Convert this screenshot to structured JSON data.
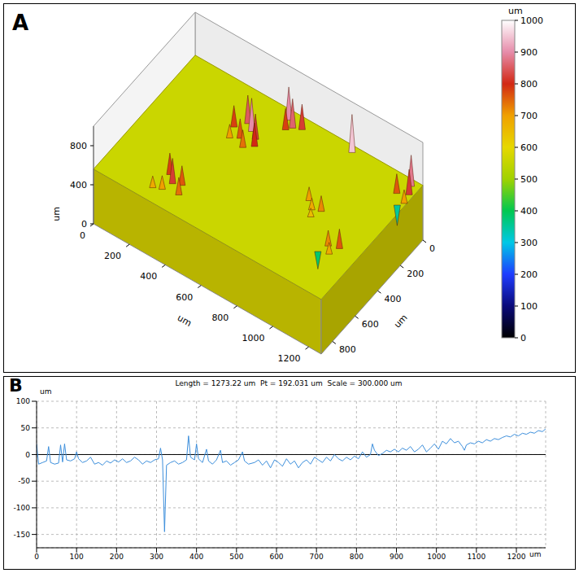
{
  "chart_data": [
    {
      "panel": "A",
      "type": "surface",
      "x_label": "um",
      "y_label": "um",
      "z_label": "um",
      "xlim": [
        0,
        1270
      ],
      "xticks": [
        0,
        200,
        400,
        600,
        800,
        1000,
        1200
      ],
      "ylim": [
        0,
        900
      ],
      "yticks": [
        0,
        200,
        400,
        600,
        800
      ],
      "zlim": [
        0,
        1000
      ],
      "zticks": [
        0,
        400,
        800
      ],
      "base_height": 560,
      "peaks": [
        {
          "x": 560,
          "y": 60,
          "z": 900
        },
        {
          "x": 600,
          "y": 90,
          "z": 860
        },
        {
          "x": 640,
          "y": 70,
          "z": 820
        },
        {
          "x": 580,
          "y": 120,
          "z": 780
        },
        {
          "x": 420,
          "y": 200,
          "z": 850
        },
        {
          "x": 460,
          "y": 230,
          "z": 900
        },
        {
          "x": 500,
          "y": 260,
          "z": 820
        },
        {
          "x": 380,
          "y": 260,
          "z": 780
        },
        {
          "x": 440,
          "y": 300,
          "z": 760
        },
        {
          "x": 520,
          "y": 300,
          "z": 800
        },
        {
          "x": 480,
          "y": 340,
          "z": 740
        },
        {
          "x": 400,
          "y": 330,
          "z": 700
        },
        {
          "x": 900,
          "y": 40,
          "z": 950
        },
        {
          "x": 300,
          "y": 700,
          "z": 780
        },
        {
          "x": 340,
          "y": 740,
          "z": 820
        },
        {
          "x": 380,
          "y": 720,
          "z": 760
        },
        {
          "x": 320,
          "y": 800,
          "z": 700
        },
        {
          "x": 400,
          "y": 780,
          "z": 740
        },
        {
          "x": 280,
          "y": 820,
          "z": 680
        },
        {
          "x": 1230,
          "y": 40,
          "z": 880
        },
        {
          "x": 1250,
          "y": 90,
          "z": 820
        },
        {
          "x": 1200,
          "y": 120,
          "z": 760
        },
        {
          "x": 1260,
          "y": 150,
          "z": 700
        },
        {
          "x": 1240,
          "y": 180,
          "z": 350
        },
        {
          "x": 900,
          "y": 420,
          "z": 700
        },
        {
          "x": 940,
          "y": 460,
          "z": 680
        },
        {
          "x": 980,
          "y": 440,
          "z": 720
        },
        {
          "x": 960,
          "y": 500,
          "z": 650
        },
        {
          "x": 1170,
          "y": 580,
          "z": 760
        },
        {
          "x": 1120,
          "y": 600,
          "z": 720
        },
        {
          "x": 1150,
          "y": 640,
          "z": 680
        },
        {
          "x": 1100,
          "y": 660,
          "z": 380
        }
      ],
      "colorbar": {
        "title": "um",
        "range": [
          0,
          1000
        ],
        "ticks": [
          0,
          100,
          200,
          300,
          400,
          500,
          600,
          700,
          800,
          900,
          1000
        ],
        "colors": [
          "#000000",
          "#0a0a7a",
          "#1e3cff",
          "#00c8e6",
          "#00c850",
          "#a0d200",
          "#e6d800",
          "#f0a000",
          "#d22814",
          "#e68caa",
          "#ffffff"
        ]
      }
    },
    {
      "panel": "B",
      "type": "line",
      "title": "Length = 1273.22 um  Pt = 192.031 um  Scale = 300.000 um",
      "x_label": "um",
      "y_label": "um",
      "xlim": [
        0,
        1273.22
      ],
      "xticks": [
        0,
        100,
        200,
        300,
        400,
        500,
        600,
        700,
        800,
        900,
        1000,
        1100,
        1200
      ],
      "ylim": [
        -175,
        100
      ],
      "yticks": [
        -150,
        -100,
        -50,
        0,
        50,
        100
      ],
      "grid": true,
      "baseline": 0,
      "color": "#3d8fdc",
      "x": [
        0,
        5,
        15,
        25,
        30,
        35,
        45,
        55,
        60,
        65,
        70,
        75,
        85,
        95,
        100,
        105,
        115,
        125,
        135,
        145,
        155,
        165,
        175,
        185,
        195,
        205,
        215,
        225,
        235,
        245,
        255,
        265,
        275,
        285,
        295,
        305,
        310,
        315,
        320,
        325,
        335,
        345,
        355,
        365,
        375,
        380,
        385,
        395,
        400,
        405,
        415,
        425,
        430,
        440,
        450,
        460,
        465,
        475,
        485,
        495,
        505,
        515,
        520,
        530,
        545,
        555,
        565,
        575,
        585,
        595,
        605,
        615,
        625,
        635,
        645,
        655,
        665,
        675,
        685,
        695,
        705,
        715,
        725,
        735,
        745,
        755,
        765,
        775,
        785,
        795,
        805,
        815,
        825,
        835,
        840,
        845,
        855,
        865,
        875,
        885,
        895,
        905,
        915,
        925,
        935,
        945,
        955,
        965,
        975,
        985,
        995,
        1005,
        1015,
        1025,
        1035,
        1045,
        1055,
        1065,
        1070,
        1075,
        1085,
        1095,
        1105,
        1115,
        1125,
        1135,
        1145,
        1155,
        1165,
        1175,
        1185,
        1195,
        1205,
        1215,
        1225,
        1235,
        1245,
        1255,
        1265,
        1273
      ],
      "values": [
        20,
        -18,
        -15,
        -12,
        15,
        -15,
        -18,
        -16,
        18,
        -14,
        20,
        -10,
        -12,
        -8,
        5,
        -8,
        -15,
        -12,
        -5,
        -18,
        -15,
        -20,
        -12,
        -16,
        -10,
        -14,
        -8,
        -15,
        -12,
        -5,
        -10,
        -18,
        -12,
        -15,
        -10,
        -8,
        12,
        -10,
        -145,
        -20,
        -15,
        -12,
        -18,
        -15,
        -10,
        35,
        -5,
        -10,
        20,
        -8,
        -15,
        10,
        -12,
        -18,
        -10,
        8,
        -15,
        -12,
        -20,
        -15,
        -10,
        5,
        -12,
        -18,
        -15,
        -10,
        -20,
        -12,
        -25,
        -10,
        -15,
        -22,
        -8,
        -18,
        -12,
        -25,
        -15,
        -10,
        -18,
        -5,
        -10,
        -15,
        -5,
        -12,
        0,
        -8,
        -12,
        -5,
        -10,
        -3,
        -8,
        5,
        -5,
        0,
        20,
        8,
        -2,
        2,
        8,
        5,
        10,
        5,
        12,
        8,
        15,
        5,
        10,
        18,
        5,
        12,
        20,
        10,
        25,
        20,
        30,
        22,
        25,
        15,
        8,
        18,
        22,
        20,
        25,
        22,
        28,
        25,
        30,
        28,
        32,
        35,
        33,
        38,
        35,
        40,
        38,
        42,
        40,
        45,
        43,
        48
      ]
    }
  ]
}
